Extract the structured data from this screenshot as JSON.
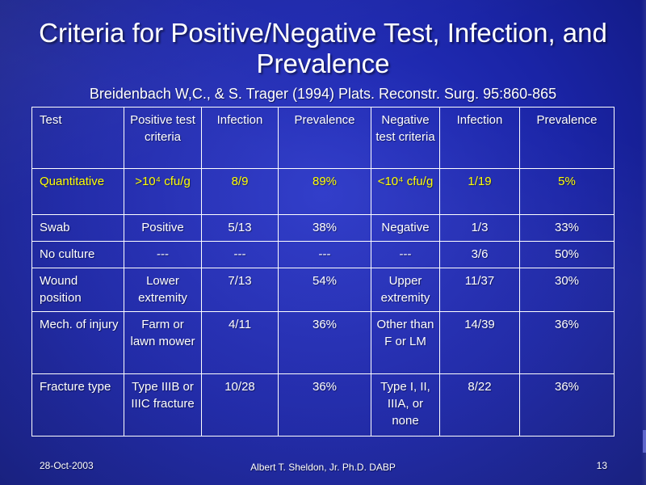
{
  "slide": {
    "title": "Criteria for Positive/Negative Test, Infection, and Prevalence",
    "subtitle": "Breidenbach  W,C., & S. Trager (1994) Plats. Reconstr. Surg. 95:860-865"
  },
  "table": {
    "headers": [
      "Test",
      "Positive test criteria",
      "Infection",
      "Prevalence",
      "Negative test criteria",
      "Infection",
      "Prevalence"
    ],
    "rows": [
      [
        "Quantitative",
        ">10⁴ cfu/g",
        "8/9",
        "89%",
        "<10⁴ cfu/g",
        "1/19",
        "5%"
      ],
      [
        "Swab",
        "Positive",
        "5/13",
        "38%",
        "Negative",
        "1/3",
        "33%"
      ],
      [
        "No culture",
        "---",
        "---",
        "---",
        "---",
        "3/6",
        "50%"
      ],
      [
        "Wound position",
        "Lower extremity",
        "7/13",
        "54%",
        "Upper extremity",
        "11/37",
        "30%"
      ],
      [
        "Mech. of injury",
        "Farm or lawn mower",
        "4/11",
        "36%",
        "Other than F or LM",
        "14/39",
        "36%"
      ],
      [
        "Fracture type",
        "Type IIIB or IIIC fracture",
        "10/28",
        "36%",
        "Type I, II, IIIA,  or none",
        "8/22",
        "36%"
      ]
    ]
  },
  "footer": {
    "date": "28-Oct-2003",
    "author": "Albert T. Sheldon, Jr. Ph.D. DABP",
    "page": "13"
  },
  "colors": {
    "background": "#1a24a6",
    "text": "#ffffff",
    "highlight": "#ffff00"
  }
}
